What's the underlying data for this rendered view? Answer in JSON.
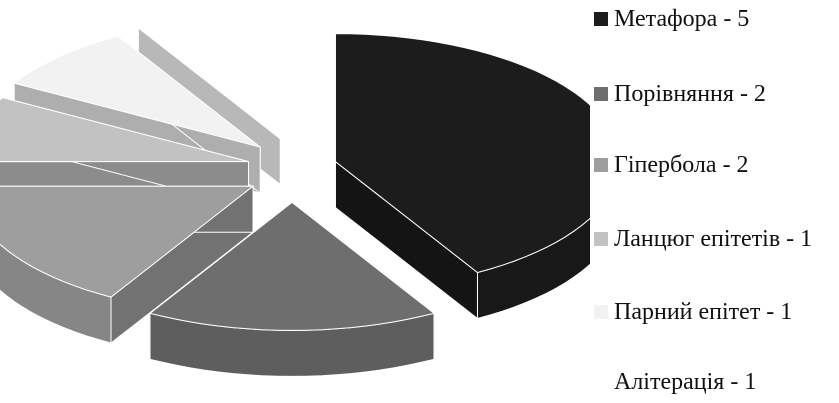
{
  "chart_data": {
    "type": "pie",
    "style": "3d-exploded",
    "categories": [
      "Метафора",
      "Порівняння",
      "Гіпербола",
      "Ланцюг епітетів",
      "Парний епітет",
      "Алітерація"
    ],
    "values": [
      5,
      2,
      2,
      1,
      1,
      1
    ],
    "legend_labels": [
      "Метафора - 5",
      "Порівняння - 2",
      "Гіпербола - 2",
      "Ланцюг епітетів - 1",
      "Парний епітет - 1",
      "Алітерація - 1"
    ],
    "colors": [
      "#1c1c1c",
      "#6e6e6e",
      "#9e9e9e",
      "#c2c2c2",
      "#f2f2f2",
      "#ffffff"
    ],
    "legend_position": "right",
    "title": ""
  }
}
